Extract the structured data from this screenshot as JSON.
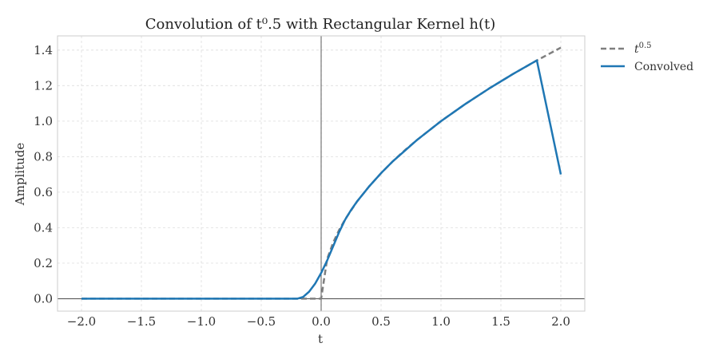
{
  "chart_data": {
    "type": "line",
    "title": "Convolution of t⁰.5 with Rectangular Kernel h(t)",
    "xlabel": "t",
    "ylabel": "Amplitude",
    "xlim": [
      -2.2,
      2.2
    ],
    "ylim": [
      -0.07,
      1.48
    ],
    "x_ticks": [
      -2.0,
      -1.5,
      -1.0,
      -0.5,
      0.0,
      0.5,
      1.0,
      1.5,
      2.0
    ],
    "x_tick_labels": [
      "−2.0",
      "−1.5",
      "−1.0",
      "−0.5",
      "0.0",
      "0.5",
      "1.0",
      "1.5",
      "2.0"
    ],
    "y_ticks": [
      0.0,
      0.2,
      0.4,
      0.6,
      0.8,
      1.0,
      1.2,
      1.4
    ],
    "y_tick_labels": [
      "0.0",
      "0.2",
      "0.4",
      "0.6",
      "0.8",
      "1.0",
      "1.2",
      "1.4"
    ],
    "grid": true,
    "legend_position": "outside-top-right",
    "reference_lines": [
      {
        "axis": "x",
        "value": 0.0,
        "color": "#333333"
      },
      {
        "axis": "y",
        "value": 0.0,
        "color": "#333333"
      }
    ],
    "series": [
      {
        "name": "t^0.5",
        "legend_label": {
          "base": "t",
          "exponent": "0.5"
        },
        "color": "#7f7f7f",
        "style": "dashed",
        "x": [
          -2.0,
          -0.5,
          0.0,
          0.0,
          0.05,
          0.1,
          0.15,
          0.2,
          0.3,
          0.4,
          0.5,
          0.6,
          0.7,
          0.8,
          1.0,
          1.2,
          1.4,
          1.6,
          1.8,
          2.0
        ],
        "y": [
          0.0,
          0.0,
          0.0,
          0.0,
          0.224,
          0.316,
          0.387,
          0.447,
          0.548,
          0.632,
          0.707,
          0.775,
          0.837,
          0.894,
          1.0,
          1.095,
          1.183,
          1.265,
          1.342,
          1.414
        ]
      },
      {
        "name": "Convolved",
        "color": "#1f77b4",
        "style": "solid",
        "x": [
          -2.0,
          -0.5,
          -0.2,
          -0.15,
          -0.1,
          -0.05,
          0.0,
          0.05,
          0.1,
          0.15,
          0.2,
          0.25,
          0.3,
          0.4,
          0.5,
          0.6,
          0.8,
          1.0,
          1.2,
          1.4,
          1.6,
          1.8,
          2.0
        ],
        "y": [
          0.0,
          0.0,
          0.0,
          0.01,
          0.04,
          0.085,
          0.145,
          0.215,
          0.295,
          0.375,
          0.445,
          0.5,
          0.548,
          0.632,
          0.707,
          0.775,
          0.894,
          1.0,
          1.095,
          1.183,
          1.265,
          1.342,
          0.7
        ]
      }
    ]
  }
}
